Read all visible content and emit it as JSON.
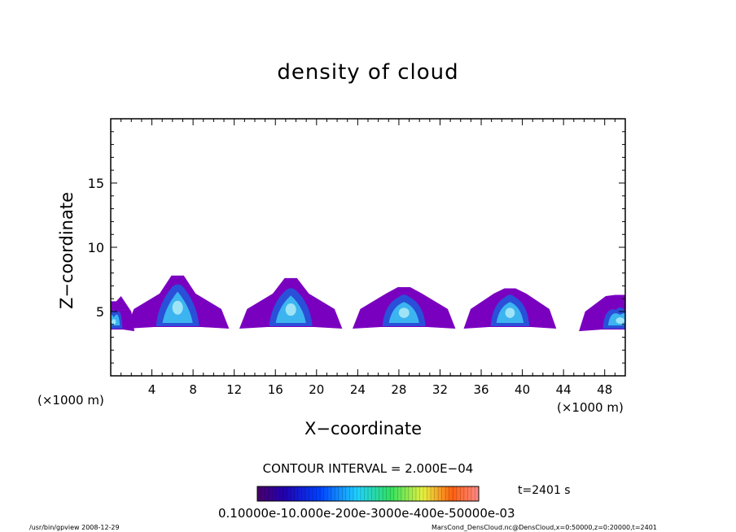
{
  "chart_data": {
    "type": "heatmap",
    "title": "density of cloud",
    "xlabel": "X−coordinate",
    "ylabel": "Z−coordinate",
    "x_unit_label": "(×1000 m)",
    "xlim": [
      0,
      50
    ],
    "ylim": [
      0,
      20
    ],
    "x_ticks": [
      4,
      8,
      12,
      16,
      20,
      24,
      28,
      32,
      36,
      40,
      44,
      48
    ],
    "y_ticks": [
      5,
      10,
      15
    ],
    "contour_interval_text": "CONTOUR INTERVAL = 2.000E−04",
    "time_text": "t=2401 s",
    "colorbar_labels_text": "0.10000e-10.000e-200e-3000e-400e-50000e-03",
    "colorbar_range": [
      0,
      0.0006
    ],
    "clouds": [
      {
        "x_center": 6.5,
        "half_width": 5.0,
        "base": 3.8,
        "top": 7.8,
        "core_top": 6.8
      },
      {
        "x_center": 17.5,
        "half_width": 5.0,
        "base": 3.8,
        "top": 7.6,
        "core_top": 6.5
      },
      {
        "x_center": 28.5,
        "half_width": 5.0,
        "base": 3.8,
        "top": 6.9,
        "core_top": 6.0
      },
      {
        "x_center": 38.8,
        "half_width": 4.5,
        "base": 3.8,
        "top": 6.8,
        "core_top": 6.0
      },
      {
        "x_center": 49.5,
        "half_width": 4.0,
        "base": 3.6,
        "top": 6.3,
        "core_top": 5.0
      },
      {
        "x_center": 0.3,
        "half_width": 2.0,
        "base": 3.6,
        "top": 5.8,
        "core_top": 4.8
      }
    ],
    "footer_left": "/usr/bin/gpview   2008-12-29",
    "footer_right": "MarsCond_DensCloud.nc@DensCloud,x=0:50000,z=0:20000,t=2401",
    "colors": {
      "outer": "#7a00c0",
      "mid": "#2a4fd8",
      "core": "#3cb4f0",
      "inner": "#9fe4f6"
    }
  }
}
